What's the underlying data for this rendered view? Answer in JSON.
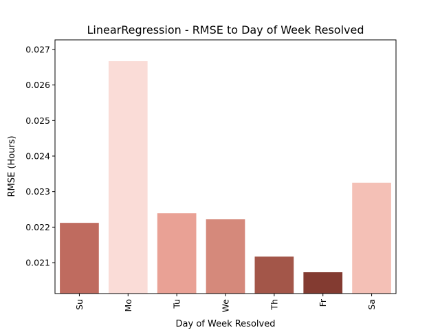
{
  "chart_data": {
    "type": "bar",
    "title": "LinearRegression - RMSE to Day of Week Resolved",
    "xlabel": "Day of Week Resolved",
    "ylabel": "RMSE (Hours)",
    "categories": [
      "Su",
      "Mo",
      "Tu",
      "We",
      "Th",
      "Fr",
      "Sa"
    ],
    "values": [
      0.02212,
      0.02667,
      0.02239,
      0.02222,
      0.02117,
      0.02073,
      0.02325
    ],
    "colors": [
      "#bf6b5f",
      "#fadcd7",
      "#e9a195",
      "#d5897b",
      "#a35649",
      "#833b31",
      "#f4c0b6"
    ],
    "ylim": [
      0.02013,
      0.02727
    ],
    "yticks": [
      0.021,
      0.022,
      0.023,
      0.024,
      0.025,
      0.026,
      0.027
    ],
    "ytick_labels": [
      "0.021",
      "0.022",
      "0.023",
      "0.024",
      "0.025",
      "0.026",
      "0.027"
    ],
    "grid": false,
    "legend": "none"
  }
}
